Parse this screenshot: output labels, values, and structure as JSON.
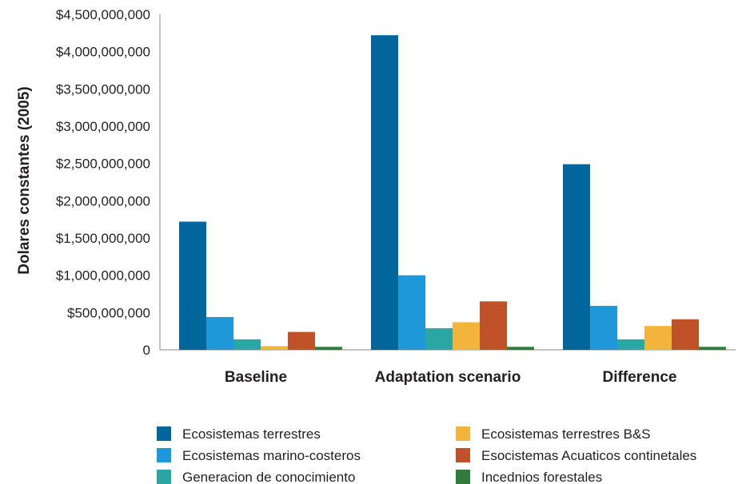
{
  "chart_data": {
    "type": "bar",
    "title": "",
    "xlabel": "",
    "ylabel": "Dolares constantes (2005)",
    "ylim": [
      0,
      4500000000
    ],
    "y_ticks": [
      0,
      500000000,
      1000000000,
      1500000000,
      2000000000,
      2500000000,
      3000000000,
      3500000000,
      4000000000,
      4500000000
    ],
    "y_tick_labels": [
      "0",
      "$500,000,000",
      "$1,000,000,000",
      "$1,500,000,000",
      "$2,000,000,000",
      "$2,500,000,000",
      "$3,000,000,000",
      "$3,500,000,000",
      "$4,000,000,000",
      "$4,500,000,000"
    ],
    "grid": false,
    "legend_position": "bottom",
    "categories": [
      "Baseline",
      "Adaptation scenario",
      "Difference"
    ],
    "series": [
      {
        "name": "Ecosistemas terrestres",
        "color": "#00669c",
        "values": [
          1720000000,
          4220000000,
          2490000000
        ]
      },
      {
        "name": "Ecosistemas marino-costeros",
        "color": "#1e98d8",
        "values": [
          440000000,
          1000000000,
          590000000
        ]
      },
      {
        "name": "Generacion de conocimiento",
        "color": "#2aa7a3",
        "values": [
          140000000,
          290000000,
          140000000
        ]
      },
      {
        "name": "Ecosistemas terrestres B&S",
        "color": "#f2b43a",
        "values": [
          50000000,
          370000000,
          320000000
        ]
      },
      {
        "name": "Esocistemas Acuaticos continetales",
        "color": "#c0522a",
        "values": [
          240000000,
          650000000,
          410000000
        ]
      },
      {
        "name": "Incednios forestales",
        "color": "#2e7d3b",
        "values": [
          40000000,
          40000000,
          40000000
        ]
      }
    ]
  }
}
